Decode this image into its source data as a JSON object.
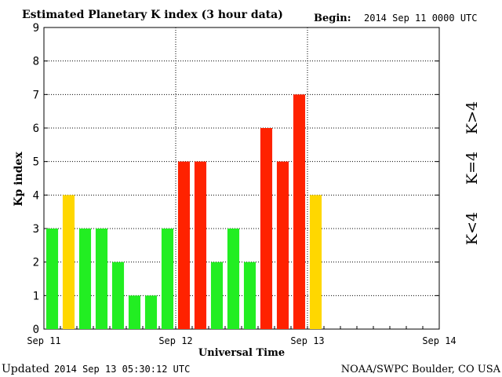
{
  "chart_data": {
    "type": "bar",
    "title": "Estimated Planetary K index (3 hour data)",
    "begin_label": "Begin:",
    "begin_value": "2014 Sep 11 0000 UTC",
    "xlabel": "Universal Time",
    "ylabel": "Kp index",
    "ylim": [
      0,
      9
    ],
    "y_ticks": [
      "0",
      "1",
      "2",
      "3",
      "4",
      "5",
      "6",
      "7",
      "8",
      "9"
    ],
    "x_ticks": [
      "Sep 11",
      "Sep 12",
      "Sep 13",
      "Sep 14"
    ],
    "grid": true,
    "legend": {
      "placement": "right",
      "entries": [
        {
          "label": "K<4",
          "color": "#22ee22"
        },
        {
          "label": "K=4",
          "color": "#ffd700"
        },
        {
          "label": "K>4",
          "color": "#ff2200"
        }
      ]
    },
    "values": [
      3,
      4,
      3,
      3,
      2,
      1,
      1,
      3,
      5,
      5,
      2,
      3,
      2,
      6,
      5,
      7,
      4
    ],
    "colors": {
      "low": "#22ee22",
      "equal": "#ffd700",
      "high": "#ff2200"
    }
  },
  "footer": {
    "updated_label": "Updated",
    "updated_value": "2014 Sep 13 05:30:12 UTC",
    "credit": "NOAA/SWPC Boulder, CO USA"
  }
}
